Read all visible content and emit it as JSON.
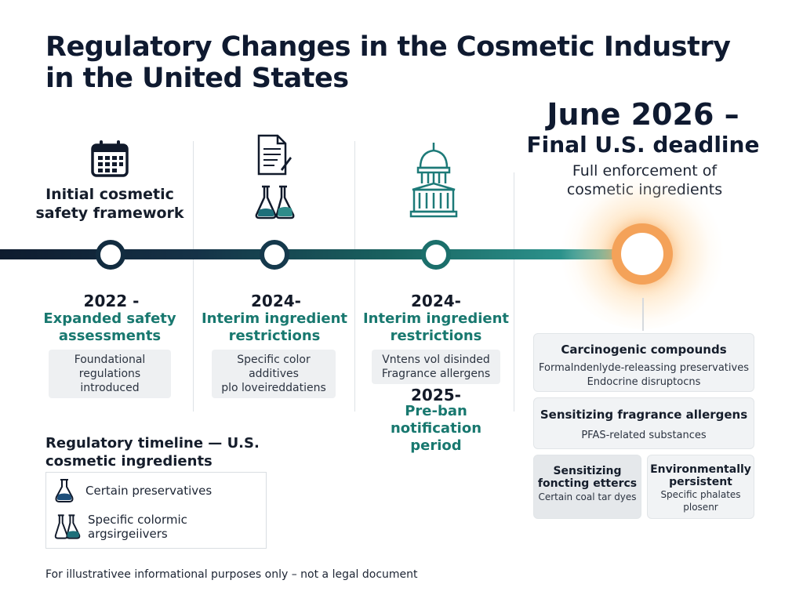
{
  "title_line1": "Regulatory Changes in the Cosmetic Industry",
  "title_line2": "in the United States",
  "final": {
    "line1": "June 2026 –",
    "line2": "Final U.S. deadline",
    "sub1": "Full enforcement of",
    "sub2": "cosmetic ingredients",
    "accent": "#f4a259"
  },
  "milestones": [
    {
      "top_label1": "Initial cosmetic",
      "top_label2": "safety framework",
      "icon": "calendar-icon",
      "year": "2022 -",
      "heading1": "Expanded safety",
      "heading2": "assessments",
      "pill1": "Foundational",
      "pill2": "regulations introduced"
    },
    {
      "icon": "document-icon",
      "icon2": "lab-flask-icon",
      "year": "2024-",
      "heading1": "Interim ingredient",
      "heading2": "restrictions",
      "pill1": "Specific color additives",
      "pill2": "plo loveireddatiens"
    },
    {
      "icon": "capitol-building-icon",
      "year": "2024-",
      "heading1": "Interim ingredient",
      "heading2": "restrictions",
      "pill1": "Vntens vol disinded",
      "pill2": "Fragrance allergens",
      "year2": "2025-",
      "heading3": "Pre-ban notification",
      "heading4": "period"
    }
  ],
  "panels": {
    "p1_title": "Carcinogenic compounds",
    "p1_line1": "Formalndenlyde-releassing preservatives",
    "p1_line2": "Endocrine disruptocns",
    "p2_title": "Sensitizing fragrance allergens",
    "p2_line1": "PFAS-related substances",
    "p3_title1": "Sensitizing",
    "p3_title2": "foncting ettercs",
    "p3_line1": "Certain coal tar dyes",
    "p4_title1": "Environmentally",
    "p4_title2": "persistent",
    "p4_line1": "Specific phalates",
    "p4_line2": "plosenr"
  },
  "legend": {
    "title1": "Regulatory timeline — U.S.",
    "title2": "cosmetic ingredients",
    "items": [
      "Certain preservatives",
      "Specific colormic argsirgeiivers"
    ]
  },
  "footer": "For illustrativee informational purposes only – not a legal document",
  "colors": {
    "navy": "#0f1a30",
    "teal": "#18786f",
    "timeline_start": "#0e1b2e",
    "timeline_end": "#35aba3"
  }
}
